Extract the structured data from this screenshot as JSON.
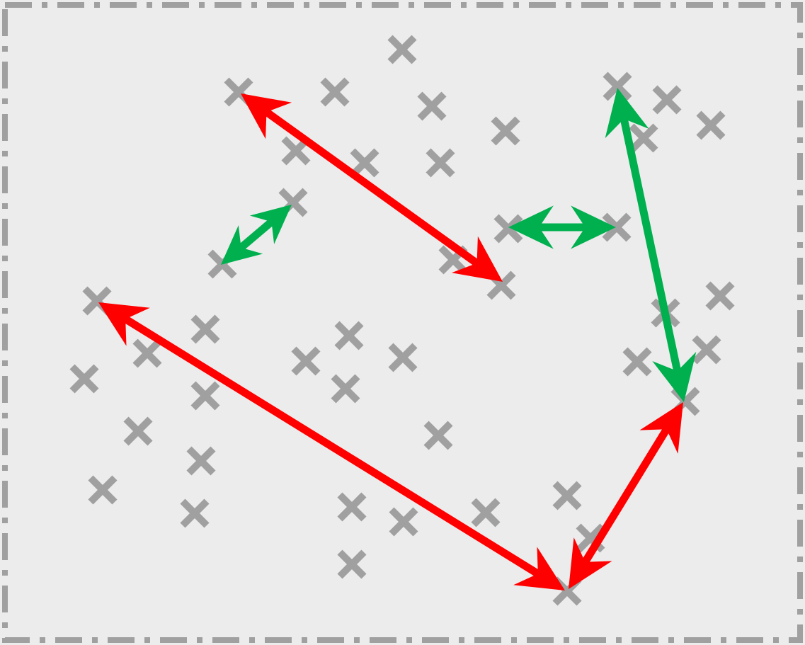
{
  "colors": {
    "background": "#ececec",
    "frame": "#a0a0a0",
    "point_marker": "#a0a0a0",
    "arrow_red": "#ff0000",
    "arrow_green": "#00b04f"
  },
  "icons": {
    "point": "cross-mark-icon",
    "arrow": "double-headed-arrow-icon"
  }
}
